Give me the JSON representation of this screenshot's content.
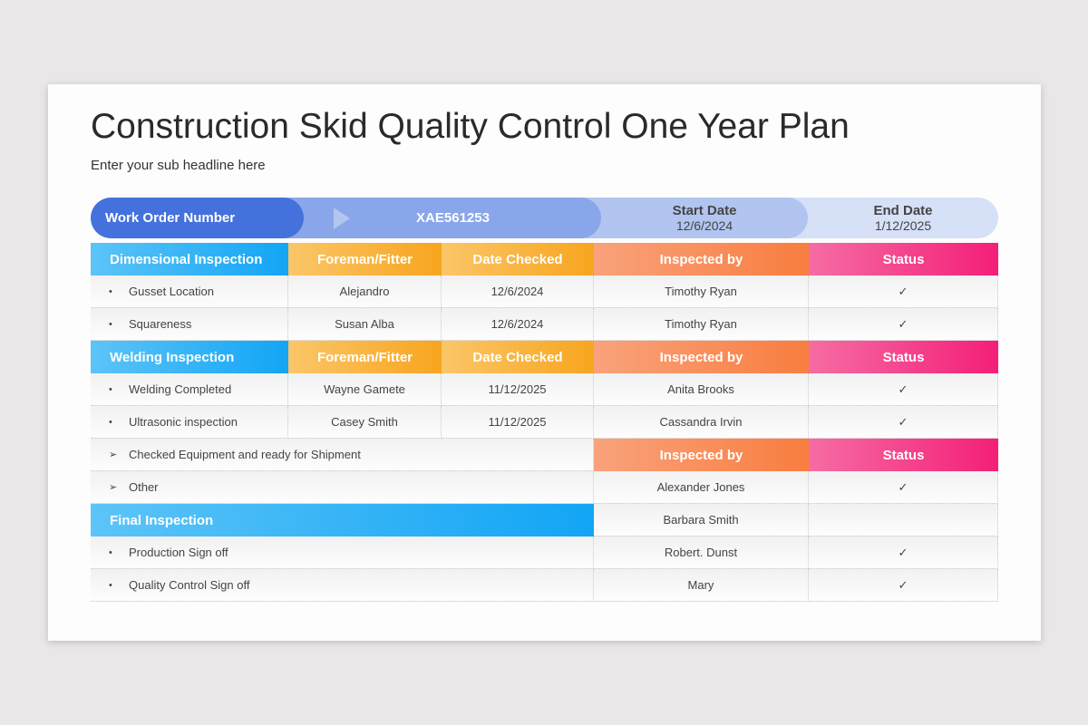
{
  "title": "Construction Skid Quality Control One Year Plan",
  "subtitle": "Enter your sub headline here",
  "work_order": {
    "label": "Work Order Number",
    "value": "XAE561253",
    "start_label": "Start Date",
    "start_value": "12/6/2024",
    "end_label": "End Date",
    "end_value": "1/12/2025"
  },
  "headers": {
    "foreman": "Foreman/Fitter",
    "date": "Date Checked",
    "inspected": "Inspected by",
    "status": "Status"
  },
  "sections": {
    "dimensional": "Dimensional  Inspection",
    "welding": "Welding Inspection",
    "final": "Final Inspection"
  },
  "rows": [
    {
      "bullet": "•",
      "item": "Gusset Location",
      "foreman": "Alejandro",
      "date": "12/6/2024",
      "inspector": "Timothy Ryan",
      "status": "✓"
    },
    {
      "bullet": "•",
      "item": "Squareness",
      "foreman": "Susan Alba",
      "date": "12/6/2024",
      "inspector": "Timothy Ryan",
      "status": "✓"
    },
    {
      "bullet": "•",
      "item": "Welding Completed",
      "foreman": "Wayne Gamete",
      "date": "11/12/2025",
      "inspector": "Anita Brooks",
      "status": "✓"
    },
    {
      "bullet": "•",
      "item": "Ultrasonic inspection",
      "foreman": "Casey Smith",
      "date": "11/12/2025",
      "inspector": "Cassandra Irvin",
      "status": "✓"
    },
    {
      "bullet": "➢",
      "item": "Checked  Equipment and ready for Shipment"
    },
    {
      "bullet": "➢",
      "item": "Other",
      "inspector": "Alexander Jones",
      "status": "✓"
    },
    {
      "inspector": "Barbara Smith",
      "status": ""
    },
    {
      "bullet": "•",
      "item": "Production Sign off",
      "inspector": "Robert. Dunst",
      "status": "✓"
    },
    {
      "bullet": "•",
      "item": "Quality Control Sign off",
      "inspector": "Mary",
      "status": "✓"
    }
  ],
  "colors": {
    "blue": "#12a5f5",
    "orange": "#f7a51e",
    "coral": "#f97d3f",
    "pink": "#f41f78",
    "work_order": "#4571dc"
  }
}
